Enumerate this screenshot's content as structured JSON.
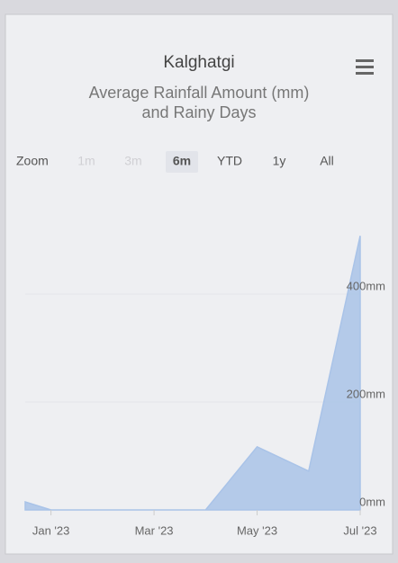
{
  "title": "Kalghatgi",
  "subtitle": "Average Rainfall Amount (mm) and Rainy Days",
  "zoom": {
    "label": "Zoom",
    "buttons": [
      "1m",
      "3m",
      "6m",
      "YTD",
      "1y",
      "All"
    ],
    "disabled": [
      0,
      1
    ],
    "selected": 2
  },
  "chart_data": {
    "type": "area",
    "color": "#a9c3e8",
    "line_color": "#a9c3e8",
    "x": [
      -0.5,
      0,
      1,
      2,
      3,
      4,
      5,
      6
    ],
    "values": [
      15,
      0,
      0,
      0,
      0,
      117,
      72,
      508
    ],
    "xlim": [
      -0.5,
      6
    ],
    "xticks": [
      {
        "value": 0,
        "label": "Jan '23"
      },
      {
        "value": 2,
        "label": "Mar '23"
      },
      {
        "value": 4,
        "label": "May '23"
      },
      {
        "value": 6,
        "label": "Jul '23"
      }
    ],
    "ylim": [
      0,
      520
    ],
    "yticks": [
      {
        "value": 0,
        "label": "0mm"
      },
      {
        "value": 200,
        "label": "200mm"
      },
      {
        "value": 400,
        "label": "400mm"
      }
    ],
    "grid": true
  }
}
